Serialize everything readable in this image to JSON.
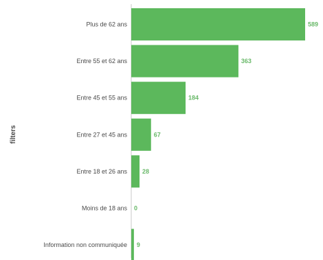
{
  "chart_data": {
    "type": "bar",
    "orientation": "horizontal",
    "ylabel": "filters",
    "categories": [
      "Plus de 62 ans",
      "Entre 55 et 62 ans",
      "Entre 45 et 55 ans",
      "Entre 27 et 45 ans",
      "Entre 18 et 26 ans",
      "Moins de 18 ans",
      "Information non communiquée"
    ],
    "values": [
      589,
      363,
      184,
      67,
      28,
      0,
      9
    ],
    "value_labels": [
      "589",
      "363",
      "184",
      "67",
      "28",
      "0",
      "9"
    ],
    "xlim": [
      0,
      589
    ],
    "grid": false,
    "colors": {
      "bar": "#5cb85c",
      "value_label": "#6ab96a",
      "axis_line": "#c8c8c8"
    }
  }
}
